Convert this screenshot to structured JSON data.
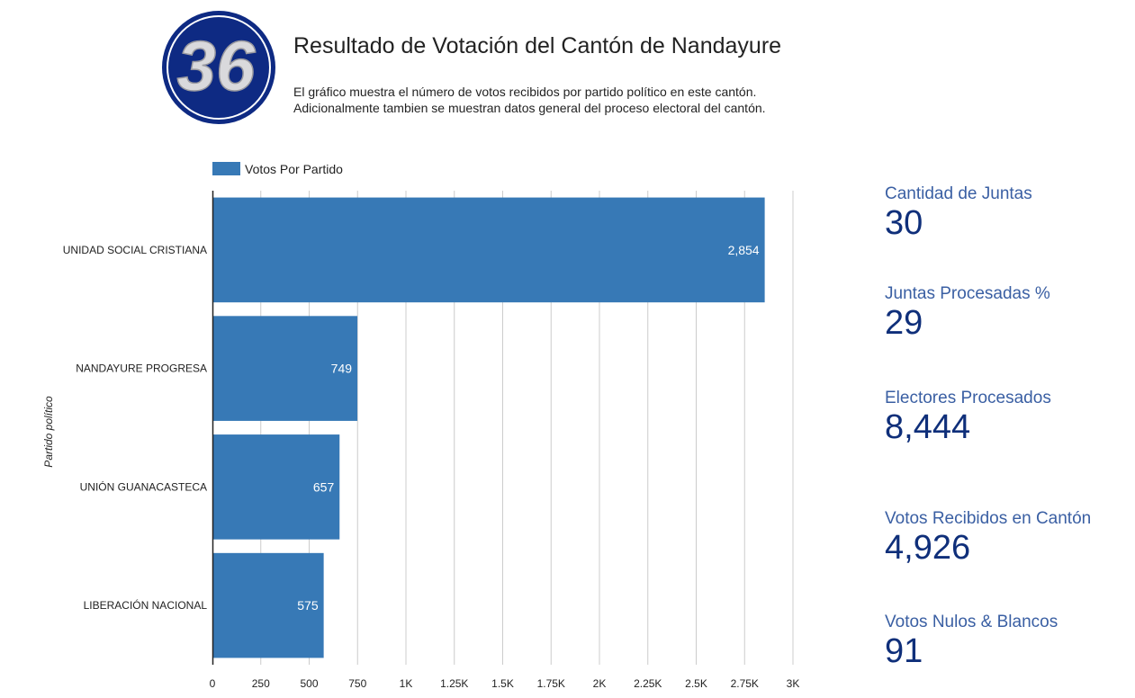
{
  "header": {
    "logo_text": "36",
    "title": "Resultado de Votación del Cantón de Nandayure",
    "subtitle_line1": "El gráfico muestra el número de votos recibidos por partido político en este cantón.",
    "subtitle_line2": "Adicionalmente tambien se muestran datos general del proceso electoral del cantón."
  },
  "colors": {
    "bar": "#3779b6",
    "logo_ring": "#0e2a83",
    "stat_label": "#3a5fa3",
    "stat_value": "#0f2f7a"
  },
  "chart_data": {
    "type": "bar",
    "orientation": "horizontal",
    "categories": [
      "UNIDAD SOCIAL CRISTIANA",
      "NANDAYURE PROGRESA",
      "UNIÓN GUANACASTECA",
      "LIBERACIÓN NACIONAL"
    ],
    "series": [
      {
        "name": "Votos Por Partido",
        "values": [
          2854,
          749,
          657,
          575
        ]
      }
    ],
    "data_labels": [
      "2,854",
      "749",
      "657",
      "575"
    ],
    "xlabel": "",
    "ylabel": "Partido político",
    "xlim": [
      0,
      3000
    ],
    "xticks": [
      0,
      250,
      500,
      750,
      1000,
      1250,
      1500,
      1750,
      2000,
      2250,
      2500,
      2750,
      3000
    ],
    "xtick_labels": [
      "0",
      "250",
      "500",
      "750",
      "1K",
      "1.25K",
      "1.5K",
      "1.75K",
      "2K",
      "2.25K",
      "2.5K",
      "2.75K",
      "3K"
    ],
    "grid": true,
    "legend": "top-left"
  },
  "stats": [
    {
      "label": "Cantidad de Juntas",
      "value": "30"
    },
    {
      "label": "Juntas Procesadas %",
      "value": "29"
    },
    {
      "label": "Electores Procesados",
      "value": "8,444"
    },
    {
      "label": "Votos Recibidos en Cantón",
      "value": "4,926"
    },
    {
      "label": "Votos Nulos & Blancos",
      "value": "91"
    }
  ]
}
